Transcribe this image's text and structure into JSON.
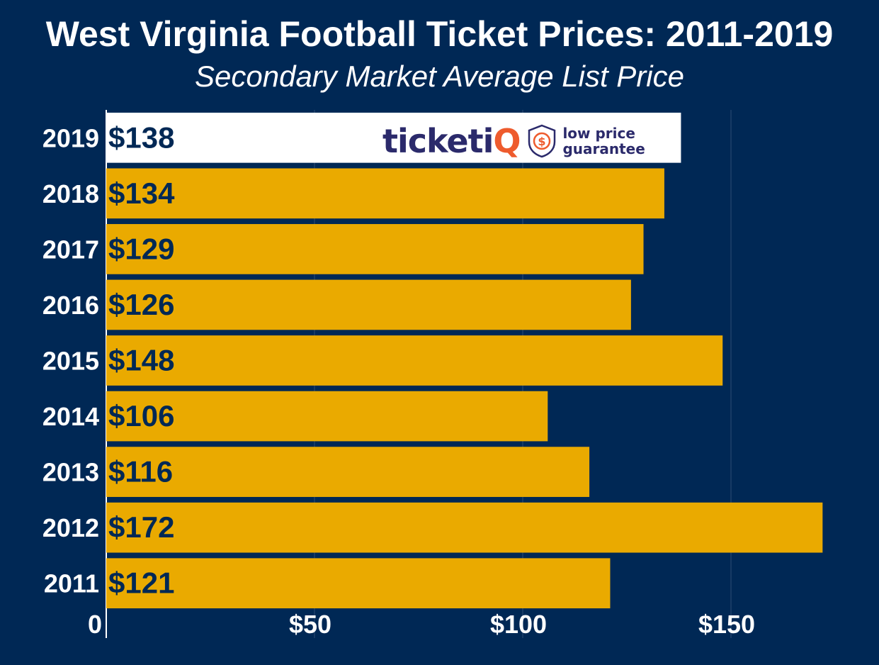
{
  "header": {
    "title": "West Virginia Football Ticket Prices: 2011-2019",
    "subtitle": "Secondary Market Average List Price"
  },
  "logo": {
    "word_main": "ticketi",
    "word_accent": "Q",
    "badge_symbol": "$",
    "tagline_line1": "low price",
    "tagline_line2": "guarantee"
  },
  "colors": {
    "background": "#002855",
    "bar": "#EAAA00",
    "highlight_bar": "#FFFFFF",
    "bar_label": "#002855",
    "text": "#FFFFFF",
    "logo_navy": "#2B2A6B",
    "logo_orange": "#EE5B2D"
  },
  "chart_data": {
    "type": "bar",
    "orientation": "horizontal",
    "categories": [
      "2019",
      "2018",
      "2017",
      "2016",
      "2015",
      "2014",
      "2013",
      "2012",
      "2011"
    ],
    "values": [
      138,
      134,
      129,
      126,
      148,
      106,
      116,
      172,
      121
    ],
    "value_labels": [
      "$138",
      "$134",
      "$129",
      "$126",
      "$148",
      "$106",
      "$116",
      "$172",
      "$121"
    ],
    "highlight_category": "2019",
    "xlim": [
      0,
      175
    ],
    "x_ticks": [
      0,
      50,
      100,
      150
    ],
    "x_tick_labels": [
      "0",
      "$50",
      "$100",
      "$150"
    ],
    "grid": true
  }
}
